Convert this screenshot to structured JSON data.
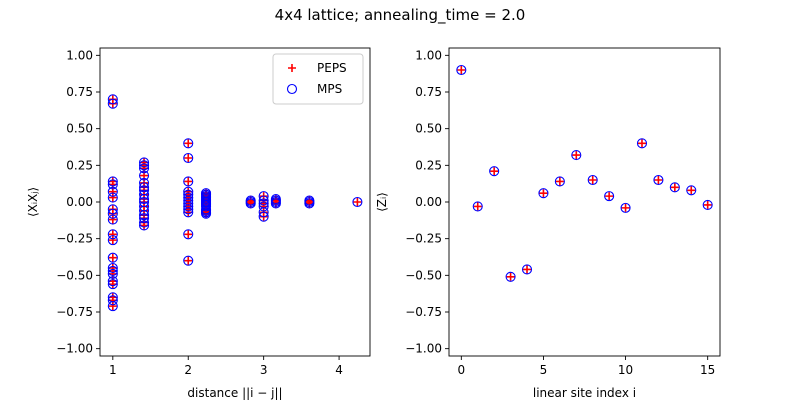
{
  "figure": {
    "title": "4x4 lattice; annealing_time = 2.0"
  },
  "chart_data": [
    {
      "type": "scatter",
      "xlabel": "distance ||i − j||",
      "ylabel": "⟨XᵢXⱼ⟩",
      "xlim": [
        0.83,
        4.41
      ],
      "ylim": [
        -1.05,
        1.05
      ],
      "xticks": [
        1,
        2,
        3,
        4
      ],
      "xtick_labels": [
        "1",
        "2",
        "3",
        "4"
      ],
      "yticks": [
        -1.0,
        -0.75,
        -0.5,
        -0.25,
        0.0,
        0.25,
        0.5,
        0.75,
        1.0
      ],
      "ytick_labels": [
        "−1.00",
        "−0.75",
        "−0.50",
        "−0.25",
        "0.00",
        "0.25",
        "0.50",
        "0.75",
        "1.00"
      ],
      "grid": false,
      "legend": {
        "position": "top-right",
        "entries": [
          "PEPS",
          "MPS"
        ]
      },
      "series": [
        {
          "name": "PEPS",
          "marker": "plus",
          "color": "#ff0000",
          "points": [
            [
              1,
              0.7
            ],
            [
              1,
              0.67
            ],
            [
              1,
              0.14
            ],
            [
              1,
              0.12
            ],
            [
              1,
              0.07
            ],
            [
              1,
              0.03
            ],
            [
              1,
              -0.05
            ],
            [
              1,
              -0.08
            ],
            [
              1,
              -0.12
            ],
            [
              1,
              -0.22
            ],
            [
              1,
              -0.26
            ],
            [
              1,
              -0.38
            ],
            [
              1,
              -0.45
            ],
            [
              1,
              -0.47
            ],
            [
              1,
              -0.49
            ],
            [
              1,
              -0.54
            ],
            [
              1,
              -0.56
            ],
            [
              1,
              -0.65
            ],
            [
              1,
              -0.67
            ],
            [
              1,
              -0.71
            ],
            [
              1.414,
              0.27
            ],
            [
              1.414,
              0.25
            ],
            [
              1.414,
              0.23
            ],
            [
              1.414,
              0.18
            ],
            [
              1.414,
              0.13
            ],
            [
              1.414,
              0.1
            ],
            [
              1.414,
              0.08
            ],
            [
              1.414,
              0.05
            ],
            [
              1.414,
              0.02
            ],
            [
              1.414,
              0.0
            ],
            [
              1.414,
              -0.03
            ],
            [
              1.414,
              -0.06
            ],
            [
              1.414,
              -0.09
            ],
            [
              1.414,
              -0.11
            ],
            [
              1.414,
              -0.14
            ],
            [
              1.414,
              -0.16
            ],
            [
              2,
              0.4
            ],
            [
              2,
              0.3
            ],
            [
              2,
              0.14
            ],
            [
              2,
              0.07
            ],
            [
              2,
              0.05
            ],
            [
              2,
              0.03
            ],
            [
              2,
              0.01
            ],
            [
              2,
              -0.01
            ],
            [
              2,
              -0.03
            ],
            [
              2,
              -0.05
            ],
            [
              2,
              -0.07
            ],
            [
              2,
              -0.22
            ],
            [
              2,
              -0.4
            ],
            [
              2.236,
              0.06
            ],
            [
              2.236,
              0.05
            ],
            [
              2.236,
              0.04
            ],
            [
              2.236,
              0.03
            ],
            [
              2.236,
              0.02
            ],
            [
              2.236,
              0.01
            ],
            [
              2.236,
              0.0
            ],
            [
              2.236,
              -0.01
            ],
            [
              2.236,
              -0.02
            ],
            [
              2.236,
              -0.03
            ],
            [
              2.236,
              -0.05
            ],
            [
              2.236,
              -0.06
            ],
            [
              2.236,
              -0.07
            ],
            [
              2.236,
              -0.08
            ],
            [
              2.828,
              0.01
            ],
            [
              2.828,
              0.0
            ],
            [
              2.828,
              -0.01
            ],
            [
              3,
              0.04
            ],
            [
              3,
              0.01
            ],
            [
              3,
              -0.01
            ],
            [
              3,
              -0.03
            ],
            [
              3,
              -0.07
            ],
            [
              3,
              -0.1
            ],
            [
              3.162,
              0.02
            ],
            [
              3.162,
              0.01
            ],
            [
              3.162,
              0.0
            ],
            [
              3.162,
              -0.01
            ],
            [
              3.606,
              0.01
            ],
            [
              3.606,
              0.0
            ],
            [
              3.606,
              -0.01
            ],
            [
              4.243,
              0.0
            ]
          ]
        },
        {
          "name": "MPS",
          "marker": "open-circle",
          "color": "#0000ff",
          "points": [
            [
              1,
              0.7
            ],
            [
              1,
              0.67
            ],
            [
              1,
              0.14
            ],
            [
              1,
              0.12
            ],
            [
              1,
              0.07
            ],
            [
              1,
              0.03
            ],
            [
              1,
              -0.05
            ],
            [
              1,
              -0.08
            ],
            [
              1,
              -0.12
            ],
            [
              1,
              -0.22
            ],
            [
              1,
              -0.26
            ],
            [
              1,
              -0.38
            ],
            [
              1,
              -0.45
            ],
            [
              1,
              -0.47
            ],
            [
              1,
              -0.49
            ],
            [
              1,
              -0.54
            ],
            [
              1,
              -0.56
            ],
            [
              1,
              -0.65
            ],
            [
              1,
              -0.67
            ],
            [
              1,
              -0.71
            ],
            [
              1.414,
              0.27
            ],
            [
              1.414,
              0.25
            ],
            [
              1.414,
              0.23
            ],
            [
              1.414,
              0.18
            ],
            [
              1.414,
              0.13
            ],
            [
              1.414,
              0.1
            ],
            [
              1.414,
              0.08
            ],
            [
              1.414,
              0.05
            ],
            [
              1.414,
              0.02
            ],
            [
              1.414,
              0.0
            ],
            [
              1.414,
              -0.03
            ],
            [
              1.414,
              -0.06
            ],
            [
              1.414,
              -0.09
            ],
            [
              1.414,
              -0.11
            ],
            [
              1.414,
              -0.14
            ],
            [
              1.414,
              -0.16
            ],
            [
              2,
              0.4
            ],
            [
              2,
              0.3
            ],
            [
              2,
              0.14
            ],
            [
              2,
              0.07
            ],
            [
              2,
              0.05
            ],
            [
              2,
              0.03
            ],
            [
              2,
              0.01
            ],
            [
              2,
              -0.01
            ],
            [
              2,
              -0.03
            ],
            [
              2,
              -0.05
            ],
            [
              2,
              -0.07
            ],
            [
              2,
              -0.22
            ],
            [
              2,
              -0.4
            ],
            [
              2.236,
              0.06
            ],
            [
              2.236,
              0.05
            ],
            [
              2.236,
              0.04
            ],
            [
              2.236,
              0.03
            ],
            [
              2.236,
              0.02
            ],
            [
              2.236,
              0.01
            ],
            [
              2.236,
              0.0
            ],
            [
              2.236,
              -0.01
            ],
            [
              2.236,
              -0.02
            ],
            [
              2.236,
              -0.03
            ],
            [
              2.236,
              -0.05
            ],
            [
              2.236,
              -0.06
            ],
            [
              2.236,
              -0.07
            ],
            [
              2.236,
              -0.08
            ],
            [
              2.828,
              0.01
            ],
            [
              2.828,
              0.0
            ],
            [
              2.828,
              -0.01
            ],
            [
              3,
              0.04
            ],
            [
              3,
              0.01
            ],
            [
              3,
              -0.01
            ],
            [
              3,
              -0.03
            ],
            [
              3,
              -0.07
            ],
            [
              3,
              -0.1
            ],
            [
              3.162,
              0.02
            ],
            [
              3.162,
              0.01
            ],
            [
              3.162,
              0.0
            ],
            [
              3.162,
              -0.01
            ],
            [
              3.606,
              0.01
            ],
            [
              3.606,
              0.0
            ],
            [
              3.606,
              -0.01
            ],
            [
              4.243,
              0.0
            ]
          ]
        }
      ]
    },
    {
      "type": "scatter",
      "xlabel": "linear site index i",
      "ylabel": "⟨Zᵢ⟩",
      "xlim": [
        -0.75,
        15.75
      ],
      "ylim": [
        -1.05,
        1.05
      ],
      "xticks": [
        0,
        5,
        10,
        15
      ],
      "xtick_labels": [
        "0",
        "5",
        "10",
        "15"
      ],
      "yticks": [
        -1.0,
        -0.75,
        -0.5,
        -0.25,
        0.0,
        0.25,
        0.5,
        0.75,
        1.0
      ],
      "ytick_labels": [
        "−1.00",
        "−0.75",
        "−0.50",
        "−0.25",
        "0.00",
        "0.25",
        "0.50",
        "0.75",
        "1.00"
      ],
      "grid": false,
      "series": [
        {
          "name": "PEPS",
          "marker": "plus",
          "color": "#ff0000",
          "points": [
            [
              0,
              0.9
            ],
            [
              1,
              -0.03
            ],
            [
              2,
              0.21
            ],
            [
              3,
              -0.51
            ],
            [
              4,
              -0.46
            ],
            [
              5,
              0.06
            ],
            [
              6,
              0.14
            ],
            [
              7,
              0.32
            ],
            [
              8,
              0.15
            ],
            [
              9,
              0.04
            ],
            [
              10,
              -0.04
            ],
            [
              11,
              0.4
            ],
            [
              12,
              0.15
            ],
            [
              13,
              0.1
            ],
            [
              14,
              0.08
            ],
            [
              15,
              -0.02
            ]
          ]
        },
        {
          "name": "MPS",
          "marker": "open-circle",
          "color": "#0000ff",
          "points": [
            [
              0,
              0.9
            ],
            [
              1,
              -0.03
            ],
            [
              2,
              0.21
            ],
            [
              3,
              -0.51
            ],
            [
              4,
              -0.46
            ],
            [
              5,
              0.06
            ],
            [
              6,
              0.14
            ],
            [
              7,
              0.32
            ],
            [
              8,
              0.15
            ],
            [
              9,
              0.04
            ],
            [
              10,
              -0.04
            ],
            [
              11,
              0.4
            ],
            [
              12,
              0.15
            ],
            [
              13,
              0.1
            ],
            [
              14,
              0.08
            ],
            [
              15,
              -0.02
            ]
          ]
        }
      ]
    }
  ]
}
